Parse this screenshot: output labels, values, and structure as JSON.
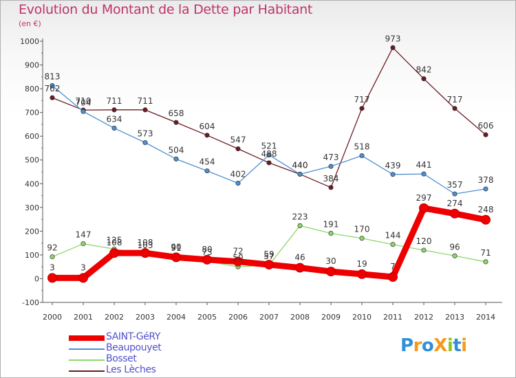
{
  "title": "Evolution du Montant de la Dette par Habitant",
  "unit": "(en €)",
  "logo": {
    "text": "ProXiti",
    "letters": [
      "P",
      "r",
      "o",
      "X",
      "i",
      "t",
      "i"
    ],
    "colors": [
      "#2f8fd8",
      "#f39a1a",
      "#2f8fd8",
      "#f39a1a",
      "#8fc31f",
      "#2f8fd8",
      "#f39a1a"
    ]
  },
  "chart_data": {
    "type": "line",
    "x": [
      "2000",
      "2001",
      "2002",
      "2003",
      "2004",
      "2005",
      "2006",
      "2007",
      "2008",
      "2009",
      "2010",
      "2011",
      "2012",
      "2013",
      "2014"
    ],
    "ylim": [
      -100,
      1000
    ],
    "yticks": [
      -100,
      0,
      100,
      200,
      300,
      400,
      500,
      600,
      700,
      800,
      900,
      1000
    ],
    "grid": false,
    "legend": "bottom-left",
    "series": [
      {
        "name": "Les Lèches",
        "color": "#6b1b22",
        "values": [
          762,
          710,
          711,
          711,
          658,
          604,
          547,
          488,
          440,
          384,
          717,
          973,
          842,
          717,
          606
        ]
      },
      {
        "name": "Beaupouyet",
        "color": "#4d8fd0",
        "values": [
          813,
          704,
          634,
          573,
          504,
          454,
          402,
          521,
          440,
          473,
          518,
          439,
          441,
          357,
          378
        ]
      },
      {
        "name": "Bosset",
        "color": "#8ed66a",
        "values": [
          92,
          147,
          125,
          103,
          91,
          73,
          50,
          57,
          223,
          191,
          170,
          144,
          120,
          96,
          71
        ]
      },
      {
        "name": "SAINT-GéRY",
        "color": "#ee0000",
        "values": [
          3,
          3,
          108,
          108,
          90,
          80,
          72,
          59,
          46,
          30,
          19,
          7,
          297,
          274,
          248
        ]
      }
    ]
  }
}
